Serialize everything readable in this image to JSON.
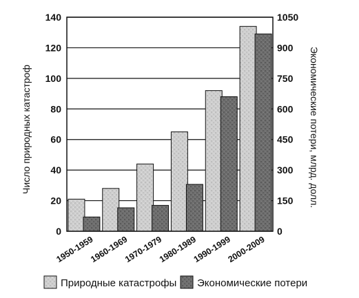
{
  "chart_data": {
    "type": "bar",
    "categories": [
      "1950-1959",
      "1960-1969",
      "1970-1979",
      "1980-1989",
      "1990-1999",
      "2000-2009"
    ],
    "series": [
      {
        "name": "Природные катастрофы",
        "axis": "left",
        "values": [
          21,
          28,
          44,
          65,
          92,
          134
        ],
        "color": "#c8c8c8"
      },
      {
        "name": "Экономические потери",
        "axis": "right",
        "values": [
          70,
          115,
          127,
          230,
          660,
          968
        ],
        "color": "#6e6e6e"
      }
    ],
    "ylabel_left": "Число природных катастроф",
    "ylabel_right": "Экономические потери, млрд. долл.",
    "ylim_left": [
      0,
      140
    ],
    "ylim_right": [
      0,
      1050
    ],
    "yticks_left": [
      "0",
      "20",
      "40",
      "60",
      "80",
      "100",
      "120",
      "140"
    ],
    "yticks_right": [
      "0",
      "150",
      "300",
      "450",
      "600",
      "750",
      "900",
      "1050"
    ],
    "grid": true,
    "legend_position": "bottom"
  }
}
